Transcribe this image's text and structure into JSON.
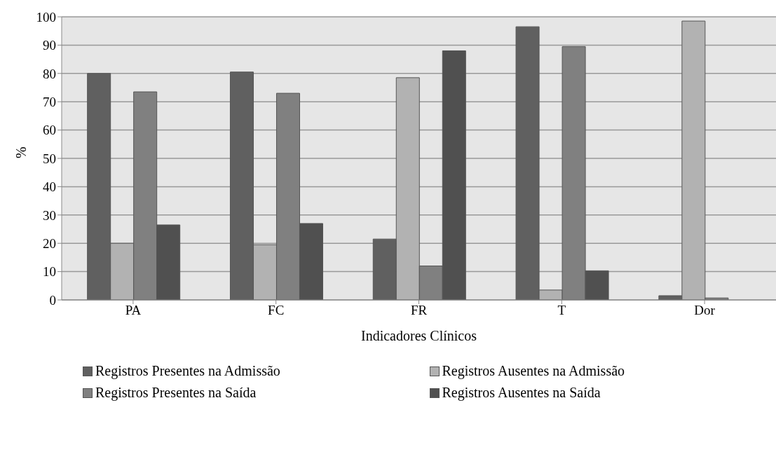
{
  "chart_data": {
    "type": "bar",
    "xlabel": "Indicadores Clínicos",
    "ylabel": "%",
    "categories": [
      "PA",
      "FC",
      "FR",
      "T",
      "Dor"
    ],
    "series": [
      {
        "name": "Registros Presentes na Admissão",
        "color": "#606060",
        "values": [
          80,
          80.5,
          21.5,
          96.5,
          1.5
        ]
      },
      {
        "name": "Registros Ausentes na Admissão",
        "color": "#b2b2b2",
        "values": [
          20,
          19.5,
          78.5,
          3.5,
          98.5
        ]
      },
      {
        "name": "Registros Presentes na Saída",
        "color": "#808080",
        "values": [
          73.5,
          73,
          12,
          89.5,
          0.7
        ]
      },
      {
        "name": "Registros Ausentes na Saída",
        "color": "#505050",
        "values": [
          26.5,
          27,
          88,
          10.3,
          null
        ]
      }
    ],
    "ylim": [
      0,
      100
    ],
    "yticks": [
      0,
      10,
      20,
      30,
      40,
      50,
      60,
      70,
      80,
      90,
      100
    ],
    "grid": "y",
    "legend": "bottom"
  }
}
